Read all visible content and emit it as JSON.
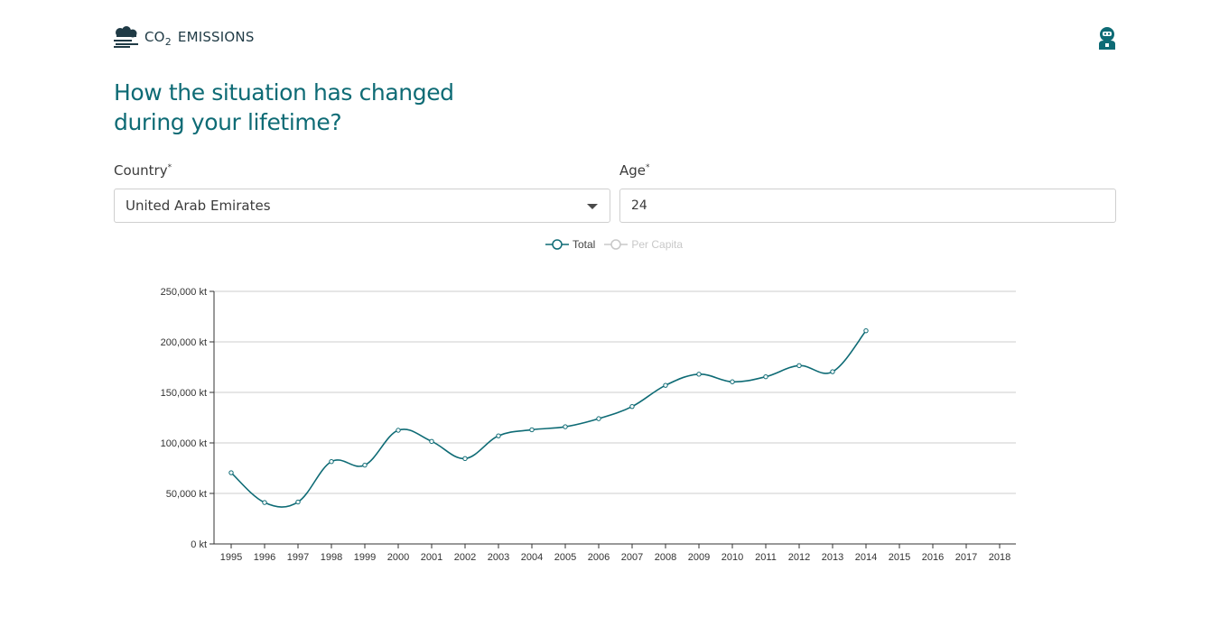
{
  "header": {
    "logo_icon": "cloud-emissions-icon",
    "logo_co": "CO",
    "logo_sub": "2",
    "logo_text": "EMISSIONS",
    "user_icon": "user-avatar-icon"
  },
  "headline": {
    "line1": "How the situation has changed",
    "line2": "during your lifetime?"
  },
  "form": {
    "country_label": "Country",
    "country_required": "*",
    "country_value": "United Arab Emirates",
    "age_label": "Age",
    "age_required": "*",
    "age_value": "24"
  },
  "colors": {
    "accent": "#0e6b75",
    "inactive": "#c8c8c8",
    "grid": "#cccccc"
  },
  "chart_data": {
    "type": "line",
    "legend": [
      "Total",
      "Per Capita"
    ],
    "legend_active": "Total",
    "legend_placement": "top-center",
    "x": [
      "1995",
      "1996",
      "1997",
      "1998",
      "1999",
      "2000",
      "2001",
      "2002",
      "2003",
      "2004",
      "2005",
      "2006",
      "2007",
      "2008",
      "2009",
      "2010",
      "2011",
      "2012",
      "2013",
      "2014",
      "2015",
      "2016",
      "2017",
      "2018"
    ],
    "series": [
      {
        "name": "Total",
        "values": [
          70500,
          41000,
          41500,
          81500,
          78000,
          112500,
          101500,
          84500,
          107000,
          113000,
          116000,
          124000,
          136000,
          157000,
          168000,
          160500,
          165500,
          176500,
          170500,
          211000,
          null,
          null,
          null,
          null
        ]
      }
    ],
    "yticks": [
      0,
      50000,
      100000,
      150000,
      200000,
      250000
    ],
    "ytick_labels": [
      "0 kt",
      "50,000 kt",
      "100,000 kt",
      "150,000 kt",
      "200,000 kt",
      "250,000 kt"
    ],
    "ylim": [
      0,
      250000
    ],
    "grid": true,
    "xlabel": "",
    "ylabel": ""
  }
}
